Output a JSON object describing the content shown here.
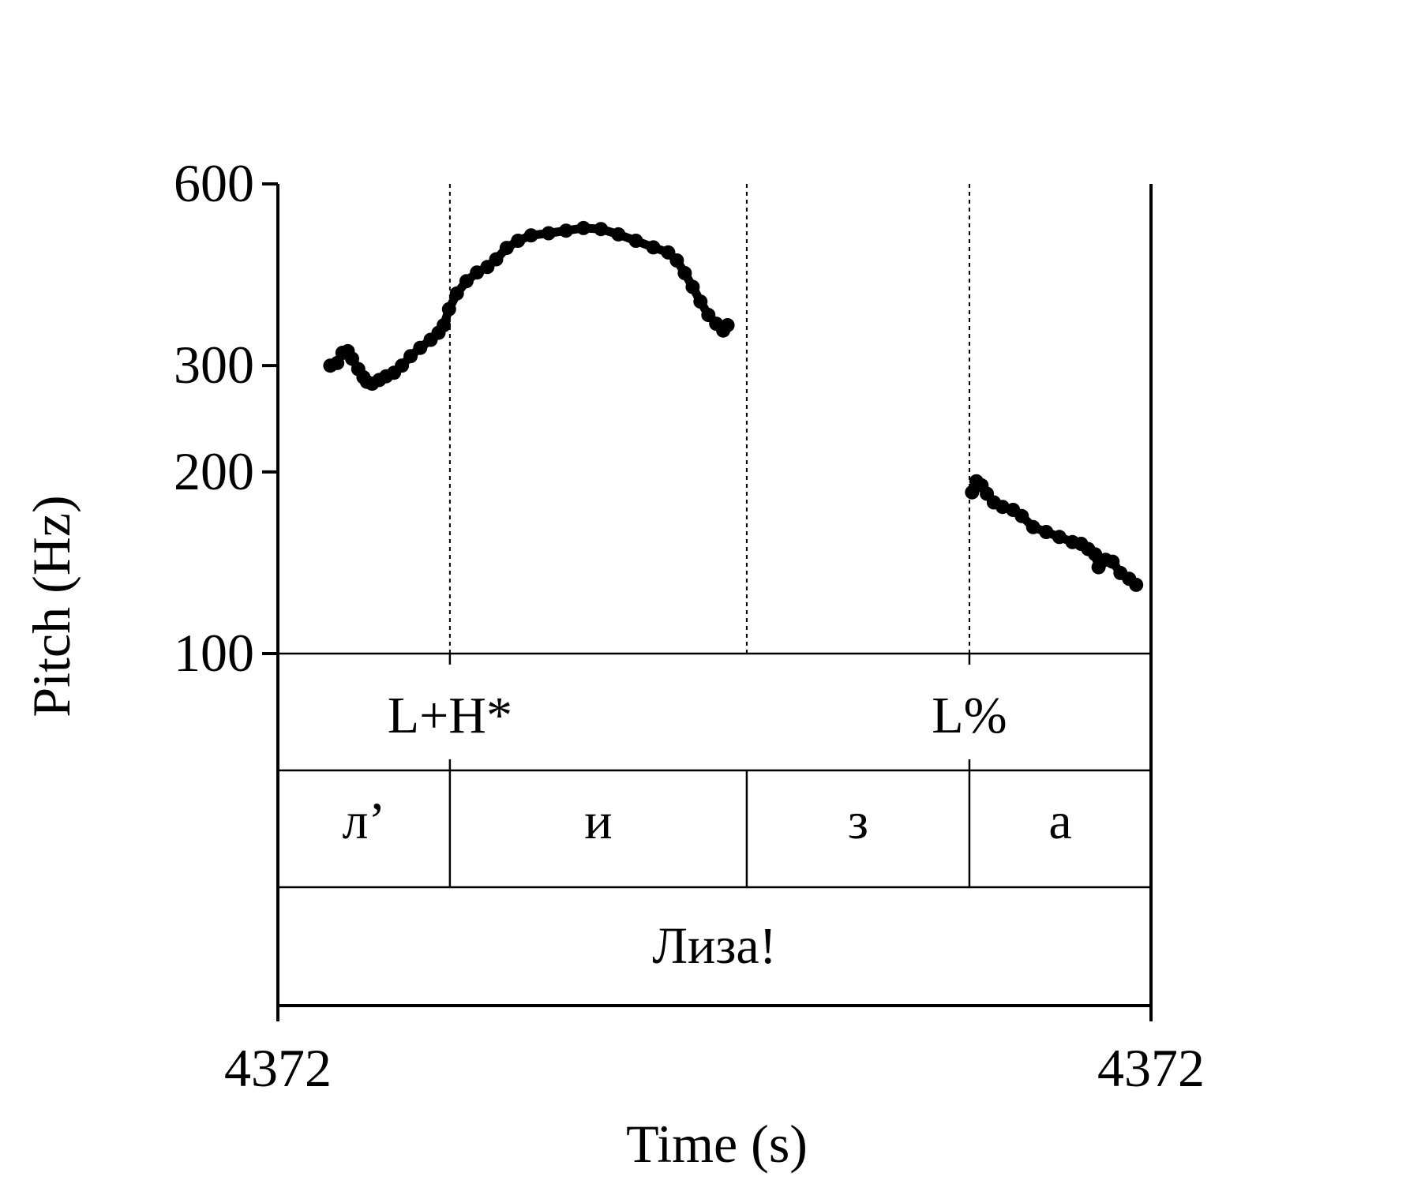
{
  "chart_data": {
    "type": "line",
    "ylabel": "Pitch (Hz)",
    "xlabel": "Time (s)",
    "y_scale": "log",
    "ylim": [
      100,
      600
    ],
    "yticks": [
      "600",
      "300",
      "200",
      "100"
    ],
    "xticks": [
      "4372",
      "4372"
    ],
    "series": [
      {
        "segments": [
          [
            [
              0.06,
              300
            ],
            [
              0.068,
              303
            ],
            [
              0.074,
              315
            ],
            [
              0.08,
              317
            ],
            [
              0.085,
              308
            ],
            [
              0.092,
              296
            ],
            [
              0.098,
              287
            ],
            [
              0.102,
              282
            ],
            [
              0.108,
              280
            ],
            [
              0.116,
              284
            ],
            [
              0.124,
              288
            ],
            [
              0.133,
              292
            ],
            [
              0.142,
              300
            ],
            [
              0.152,
              311
            ],
            [
              0.163,
              321
            ],
            [
              0.175,
              331
            ],
            [
              0.184,
              340
            ],
            [
              0.19,
              350
            ],
            [
              0.196,
              372
            ],
            [
              0.205,
              395
            ],
            [
              0.216,
              414
            ],
            [
              0.228,
              428
            ],
            [
              0.24,
              437
            ],
            [
              0.25,
              450
            ],
            [
              0.262,
              470
            ],
            [
              0.275,
              483
            ],
            [
              0.29,
              493
            ],
            [
              0.31,
              497
            ],
            [
              0.33,
              502
            ],
            [
              0.35,
              507
            ],
            [
              0.37,
              505
            ],
            [
              0.39,
              495
            ],
            [
              0.41,
              483
            ],
            [
              0.43,
              471
            ],
            [
              0.447,
              462
            ],
            [
              0.457,
              448
            ],
            [
              0.466,
              427
            ],
            [
              0.475,
              405
            ],
            [
              0.484,
              383
            ],
            [
              0.493,
              364
            ],
            [
              0.502,
              352
            ],
            [
              0.51,
              343
            ],
            [
              0.515,
              350
            ]
          ],
          [
            [
              0.795,
              185
            ],
            [
              0.8,
              193
            ],
            [
              0.806,
              190
            ],
            [
              0.812,
              184
            ],
            [
              0.82,
              178
            ],
            [
              0.83,
              175
            ],
            [
              0.842,
              173
            ],
            [
              0.852,
              169
            ],
            [
              0.865,
              162
            ],
            [
              0.88,
              159
            ],
            [
              0.895,
              156
            ],
            [
              0.91,
              153
            ],
            [
              0.92,
              152
            ],
            [
              0.928,
              149
            ],
            [
              0.936,
              146
            ],
            [
              0.94,
              139
            ],
            [
              0.948,
              143
            ],
            [
              0.956,
              142
            ],
            [
              0.965,
              136
            ],
            [
              0.975,
              133
            ],
            [
              0.983,
              130
            ]
          ]
        ]
      }
    ],
    "boundaries": [
      0.197,
      0.537,
      0.792
    ],
    "tones": [
      {
        "text": "L+H*",
        "time": 0.197
      },
      {
        "text": "L%",
        "time": 0.792
      }
    ],
    "segments_tier": [
      {
        "text": "л’",
        "start": 0,
        "end": 0.197
      },
      {
        "text": "и",
        "start": 0.197,
        "end": 0.537
      },
      {
        "text": "з",
        "start": 0.537,
        "end": 0.792
      },
      {
        "text": "а",
        "start": 0.792,
        "end": 1
      }
    ],
    "word_tier": [
      {
        "text": "Лиза!",
        "start": 0,
        "end": 1
      }
    ]
  }
}
